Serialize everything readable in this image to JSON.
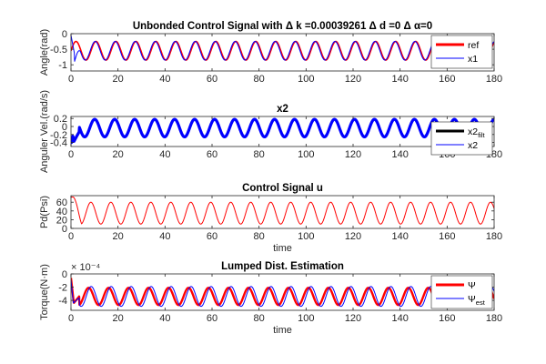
{
  "figure": {
    "background": "#ffffff"
  },
  "chart_data": [
    {
      "type": "line",
      "title": "Unbonded Control Signal with Δ k =0.00039261 Δ d =0 Δ α=0",
      "xlabel": "",
      "ylabel": "Angle(rad)",
      "xlim": [
        0,
        180
      ],
      "ylim": [
        -1.2,
        0
      ],
      "xticks": [
        0,
        20,
        40,
        60,
        80,
        100,
        120,
        140,
        160,
        180
      ],
      "yticks": [
        -1,
        -0.5,
        0
      ],
      "ytick_labels": [
        "-1",
        "-0.5",
        "0"
      ],
      "grid": false,
      "legend_position": "top-right",
      "legend": [
        {
          "label": "ref",
          "sub": "",
          "color": "#ff0000",
          "width": 3
        },
        {
          "label": "x1",
          "sub": "",
          "color": "#0000ff",
          "width": 1
        }
      ],
      "series": [
        {
          "name": "ref",
          "color": "#ff0000",
          "stroke_width": 1.6,
          "kind": "sine",
          "center": -0.55,
          "amplitude": 0.3,
          "period": 8.5,
          "phase": 0,
          "transient": "none"
        },
        {
          "name": "x1",
          "color": "#0000ff",
          "stroke_width": 1.0,
          "kind": "sine",
          "center": -0.55,
          "amplitude": 0.3,
          "period": 8.5,
          "phase": 0.25,
          "transient": "x1"
        }
      ]
    },
    {
      "type": "line",
      "title": "x2",
      "xlabel": "",
      "ylabel": "Anguler Vel.(rad/s)",
      "xlim": [
        0,
        180
      ],
      "ylim": [
        -0.5,
        0.25
      ],
      "xticks": [
        0,
        20,
        40,
        60,
        80,
        100,
        120,
        140,
        160,
        180
      ],
      "yticks": [
        -0.4,
        -0.2,
        0,
        0.2
      ],
      "ytick_labels": [
        "-0.4",
        "-0.2",
        "0",
        "0.2"
      ],
      "grid": false,
      "legend_position": "top-right",
      "legend": [
        {
          "label": "x2",
          "sub": "filt",
          "color": "#000000",
          "width": 3
        },
        {
          "label": "x2",
          "sub": "",
          "color": "#0000ff",
          "width": 1
        }
      ],
      "series": [
        {
          "name": "x2 filt",
          "color": "#000000",
          "stroke_width": 2.2,
          "kind": "sine",
          "center": -0.04,
          "amplitude": 0.22,
          "period": 8.5,
          "phase": 0.4,
          "transient": "x2"
        },
        {
          "name": "x2",
          "color": "#0000ff",
          "stroke_width": 3.2,
          "kind": "sine",
          "center": -0.04,
          "amplitude": 0.22,
          "period": 8.5,
          "phase": 0.4,
          "transient": "x2"
        }
      ]
    },
    {
      "type": "line",
      "title": "Control Signal u",
      "xlabel": "time",
      "ylabel": "Pd(Psi)",
      "xlim": [
        0,
        180
      ],
      "ylim": [
        0,
        75
      ],
      "xticks": [
        0,
        20,
        40,
        60,
        80,
        100,
        120,
        140,
        160,
        180
      ],
      "yticks": [
        0,
        20,
        40,
        60
      ],
      "ytick_labels": [
        "0",
        "20",
        "40",
        "60"
      ],
      "grid": false,
      "legend_position": "none",
      "legend": [],
      "series": [
        {
          "name": "u",
          "color": "#ff0000",
          "stroke_width": 1.0,
          "kind": "sine",
          "center": 35,
          "amplitude": 25,
          "period": 8.5,
          "phase": 1.6,
          "transient": "u"
        }
      ]
    },
    {
      "type": "line",
      "title": "Lumped Dist. Estimation",
      "xlabel": "time",
      "ylabel": "Torque(N·m)",
      "exponent_label": "× 10⁻⁴",
      "xlim": [
        0,
        180
      ],
      "ylim": [
        -5.5,
        0
      ],
      "xticks": [
        0,
        20,
        40,
        60,
        80,
        100,
        120,
        140,
        160,
        180
      ],
      "yticks": [
        -4,
        -2,
        0
      ],
      "ytick_labels": [
        "-4",
        "-2",
        "0"
      ],
      "grid": false,
      "legend_position": "top-right",
      "legend": [
        {
          "label": "Ψ",
          "sub": "",
          "color": "#ff0000",
          "width": 3
        },
        {
          "label": "Ψ",
          "sub": "est",
          "color": "#0000ff",
          "width": 1
        }
      ],
      "series": [
        {
          "name": "Ψ",
          "color": "#ff0000",
          "stroke_width": 2.4,
          "kind": "sine",
          "center": -3.4,
          "amplitude": 1.3,
          "period": 8.5,
          "phase": 2.3,
          "transient": "psi"
        },
        {
          "name": "Ψ est",
          "color": "#0000ff",
          "stroke_width": 1.0,
          "kind": "sine",
          "center": -3.4,
          "amplitude": 1.5,
          "period": 8.5,
          "phase": 1.5,
          "transient": "psi_est"
        }
      ]
    }
  ]
}
